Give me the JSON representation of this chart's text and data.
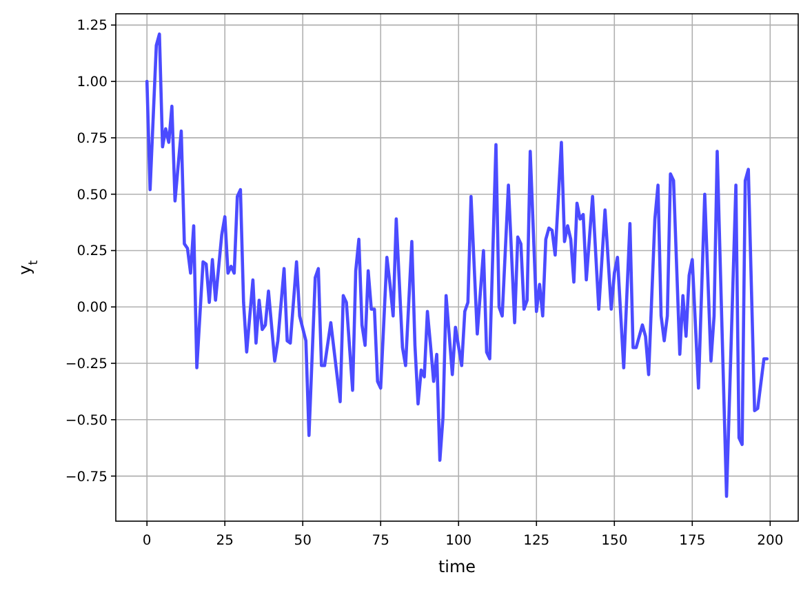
{
  "chart_data": {
    "type": "line",
    "xlabel": "time",
    "ylabel": "y$_{t}$",
    "grid": true,
    "line_style": "solid",
    "marker": "none",
    "xlim": [
      -10,
      209
    ],
    "ylim": [
      -0.95,
      1.3
    ],
    "xticks": [
      0,
      25,
      50,
      75,
      100,
      125,
      150,
      175,
      200
    ],
    "yticks": [
      {
        "value": -0.75,
        "label": "−0.75"
      },
      {
        "value": -0.5,
        "label": "−0.50"
      },
      {
        "value": -0.25,
        "label": "−0.25"
      },
      {
        "value": 0,
        "label": "0.00"
      },
      {
        "value": 0.25,
        "label": "0.25"
      },
      {
        "value": 0.5,
        "label": "0.50"
      },
      {
        "value": 0.75,
        "label": "0.75"
      },
      {
        "value": 1,
        "label": "1.00"
      },
      {
        "value": 1.25,
        "label": "1.25"
      }
    ],
    "series": [
      {
        "color": "#4b4bff",
        "x": [
          0,
          1,
          3,
          4,
          5,
          6,
          7,
          8,
          9,
          11,
          12,
          13,
          14,
          15,
          16,
          18,
          19,
          20,
          21,
          22,
          24,
          25,
          26,
          27,
          28,
          29,
          30,
          31,
          32,
          34,
          35,
          36,
          37,
          38,
          39,
          41,
          42,
          44,
          45,
          46,
          48,
          49,
          51,
          52,
          54,
          55,
          56,
          57,
          59,
          62,
          63,
          64,
          66,
          67,
          68,
          69,
          70,
          71,
          72,
          73,
          74,
          75,
          77,
          78,
          79,
          80,
          82,
          83,
          85,
          86,
          87,
          88,
          89,
          90,
          91,
          92,
          93,
          94,
          95,
          96,
          98,
          99,
          101,
          102,
          103,
          104,
          106,
          108,
          109,
          110,
          112,
          113,
          114,
          116,
          118,
          119,
          120,
          121,
          122,
          123,
          125,
          126,
          127,
          128,
          129,
          130,
          131,
          133,
          134,
          135,
          136,
          137,
          138,
          139,
          140,
          141,
          143,
          145,
          147,
          149,
          150,
          151,
          153,
          155,
          156,
          157,
          159,
          160,
          161,
          163,
          164,
          165,
          166,
          167,
          168,
          169,
          171,
          172,
          173,
          174,
          175,
          177,
          179,
          181,
          182,
          183,
          186,
          189,
          190,
          191,
          192,
          193,
          195,
          196,
          198,
          199
        ],
        "values": [
          1.0,
          0.52,
          1.16,
          1.21,
          0.71,
          0.79,
          0.73,
          0.89,
          0.47,
          0.78,
          0.28,
          0.26,
          0.15,
          0.36,
          -0.27,
          0.2,
          0.19,
          0.02,
          0.21,
          0.03,
          0.32,
          0.4,
          0.15,
          0.18,
          0.15,
          0.49,
          0.52,
          0.02,
          -0.2,
          0.12,
          -0.16,
          0.03,
          -0.1,
          -0.08,
          0.07,
          -0.24,
          -0.15,
          0.17,
          -0.15,
          -0.16,
          0.2,
          -0.04,
          -0.15,
          -0.57,
          0.13,
          0.17,
          -0.26,
          -0.26,
          -0.07,
          -0.42,
          0.05,
          0.02,
          -0.37,
          0.16,
          0.3,
          -0.08,
          -0.17,
          0.16,
          -0.01,
          -0.01,
          -0.33,
          -0.36,
          0.22,
          0.1,
          -0.04,
          0.39,
          -0.18,
          -0.26,
          0.29,
          -0.17,
          -0.43,
          -0.28,
          -0.31,
          -0.02,
          -0.17,
          -0.33,
          -0.21,
          -0.68,
          -0.49,
          0.05,
          -0.3,
          -0.09,
          -0.26,
          -0.02,
          0.02,
          0.49,
          -0.12,
          0.25,
          -0.2,
          -0.23,
          0.72,
          0.0,
          -0.04,
          0.54,
          -0.07,
          0.31,
          0.28,
          -0.01,
          0.03,
          0.69,
          -0.02,
          0.1,
          -0.04,
          0.3,
          0.35,
          0.34,
          0.23,
          0.73,
          0.29,
          0.36,
          0.3,
          0.11,
          0.46,
          0.39,
          0.41,
          0.12,
          0.49,
          -0.01,
          0.43,
          -0.01,
          0.15,
          0.22,
          -0.27,
          0.37,
          -0.18,
          -0.18,
          -0.08,
          -0.13,
          -0.3,
          0.39,
          0.54,
          -0.04,
          -0.15,
          -0.04,
          0.59,
          0.56,
          -0.21,
          0.05,
          -0.13,
          0.14,
          0.21,
          -0.36,
          0.5,
          -0.24,
          -0.04,
          0.69,
          -0.84,
          0.54,
          -0.58,
          -0.61,
          0.56,
          0.61,
          -0.46,
          -0.45,
          -0.23,
          -0.23
        ]
      }
    ]
  }
}
